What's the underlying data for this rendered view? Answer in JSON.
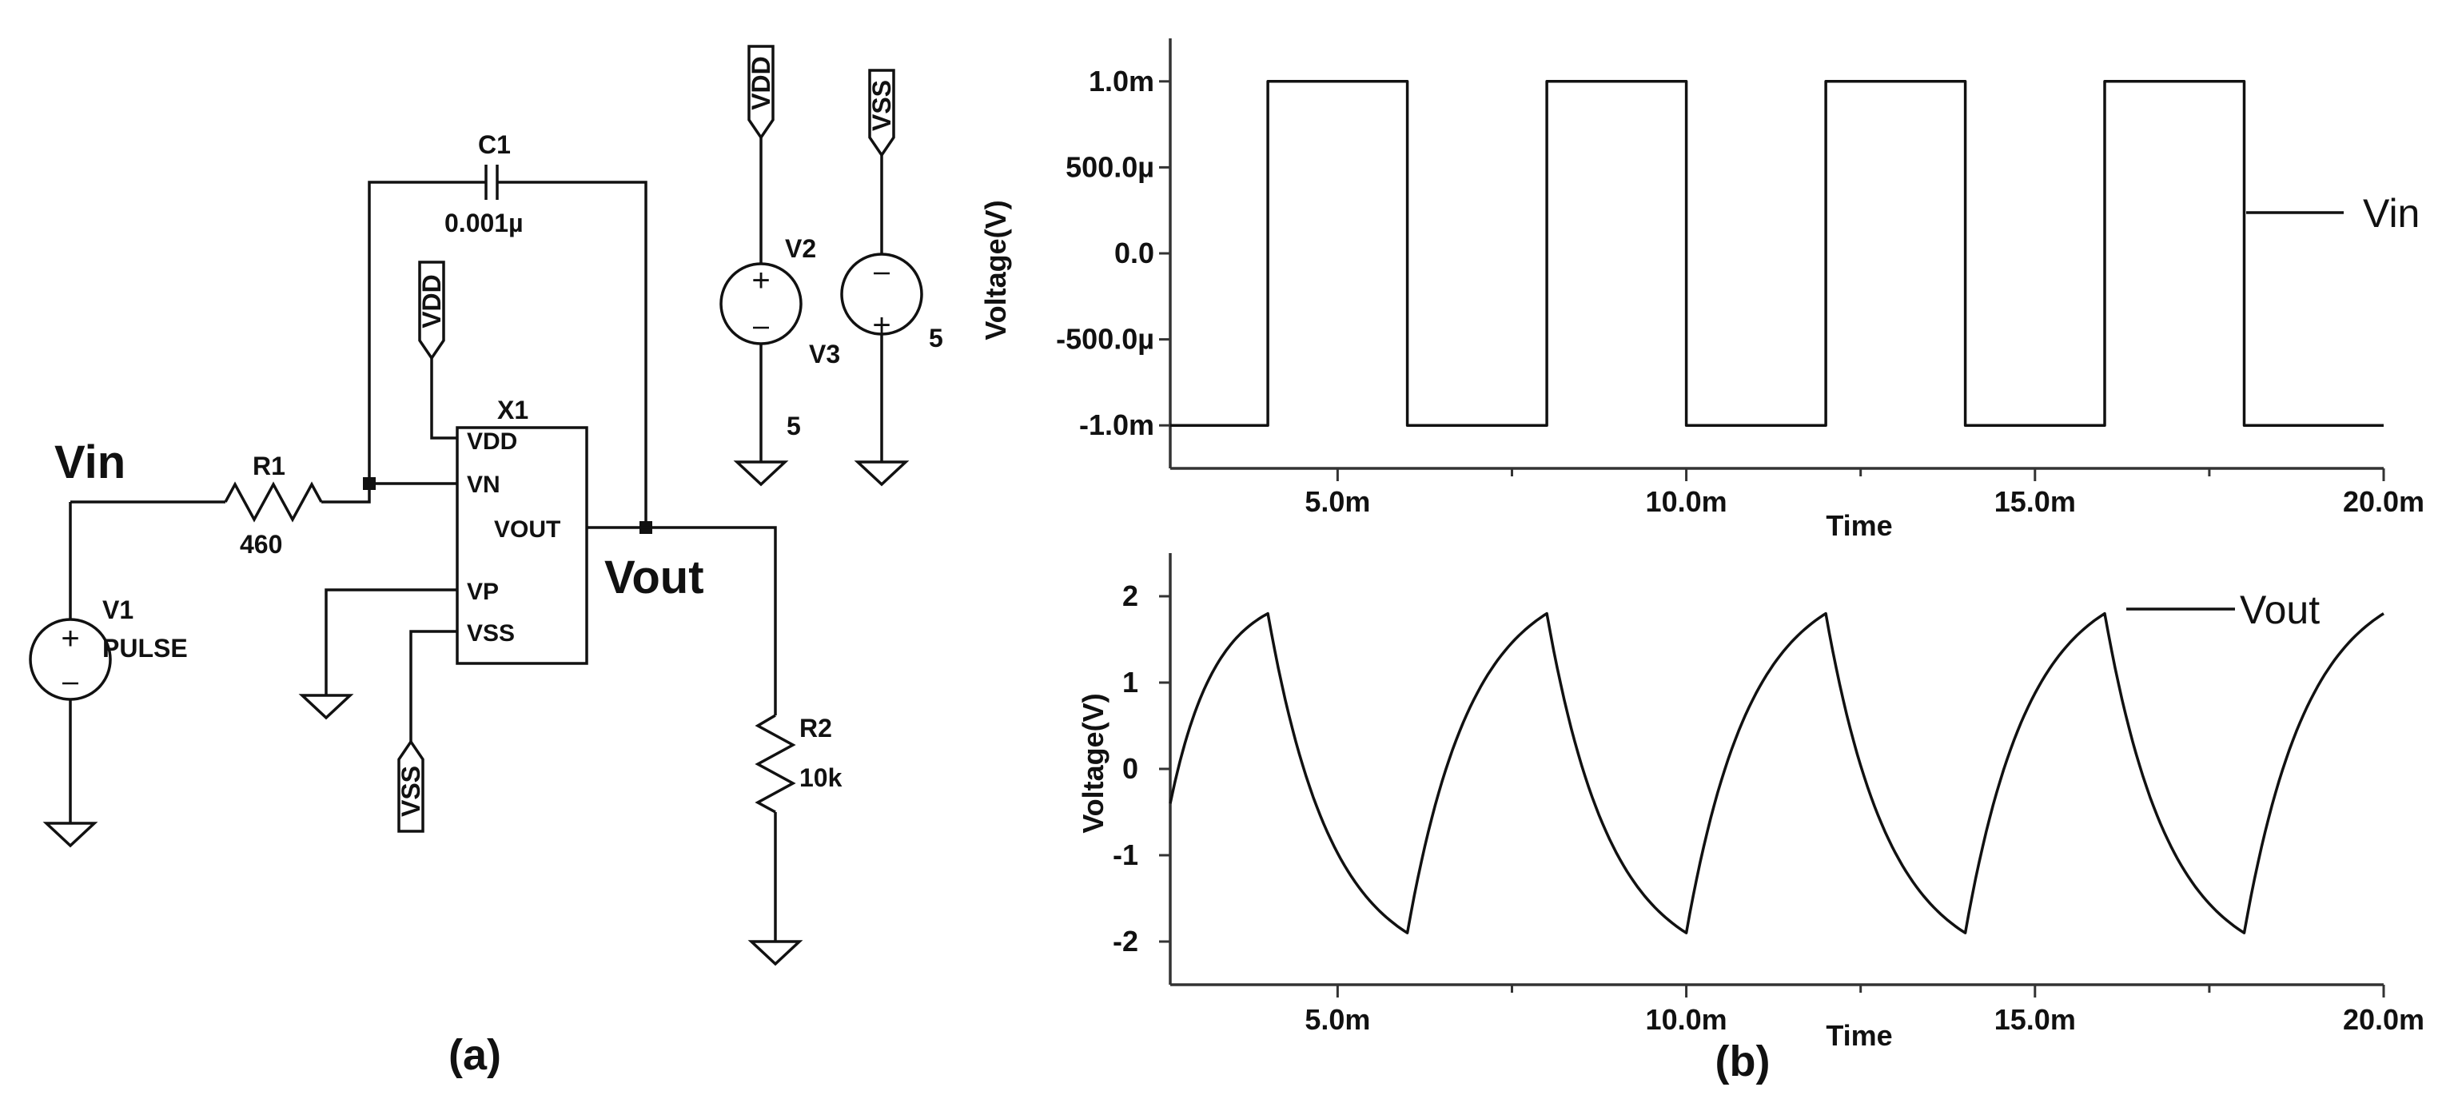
{
  "schematic": {
    "label_vin": "Vin",
    "label_vout": "Vout",
    "r1_name": "R1",
    "r1_value": "460",
    "c1_name": "C1",
    "c1_value": "0.001µ",
    "x1_name": "X1",
    "pin_vdd": "VDD",
    "pin_vn": "VN",
    "pin_vout": "VOUT",
    "pin_vp": "VP",
    "pin_vss": "VSS",
    "v1_name": "V1",
    "v1_value": "PULSE",
    "v2_name": "V2",
    "v2_value": "5",
    "v3_name": "V3",
    "v3_value": "5",
    "r2_name": "R2",
    "r2_value": "10k",
    "flag_vdd": "VDD",
    "flag_vss": "VSS",
    "caption": "(a)"
  },
  "plots_caption": "(b)",
  "chart_data": [
    {
      "type": "line",
      "title": "",
      "xlabel": "Time",
      "ylabel": "Voltage(V)",
      "xlim": [
        2.6,
        20.0
      ],
      "ylim": [
        -1.25,
        1.25
      ],
      "xticks": [
        "5.0m",
        "10.0m",
        "15.0m",
        "20.0m"
      ],
      "yticks": [
        "1.0m",
        "500.0µ",
        "0.0",
        "-500.0µ",
        "-1.0m"
      ],
      "legend": {
        "position": "right",
        "entries": [
          "Vin"
        ]
      },
      "series": [
        {
          "name": "Vin",
          "x": [
            2.6,
            4,
            4,
            6,
            6,
            8,
            8,
            10,
            10,
            12,
            12,
            14,
            14,
            16,
            16,
            18,
            18,
            20
          ],
          "y": [
            -1,
            -1,
            1,
            1,
            -1,
            -1,
            1,
            1,
            -1,
            -1,
            1,
            1,
            -1,
            -1,
            1,
            1,
            -1,
            -1
          ]
        }
      ]
    },
    {
      "type": "line",
      "title": "",
      "xlabel": "Time",
      "ylabel": "Voltage(V)",
      "xlim": [
        2.6,
        20.0
      ],
      "ylim": [
        -2.5,
        2.5
      ],
      "xticks": [
        "5.0m",
        "10.0m",
        "15.0m",
        "20.0m"
      ],
      "yticks": [
        "2",
        "1",
        "0",
        "-1",
        "-2"
      ],
      "legend": {
        "position": "top-right",
        "entries": [
          "Vout"
        ]
      },
      "series": [
        {
          "name": "Vout",
          "x": [
            2.6,
            4,
            6,
            8,
            10,
            12,
            14,
            16,
            18,
            20
          ],
          "y": [
            -0.4,
            1.8,
            -1.9,
            1.8,
            -1.9,
            1.8,
            -1.9,
            1.8,
            -1.9,
            1.8
          ]
        }
      ]
    }
  ]
}
